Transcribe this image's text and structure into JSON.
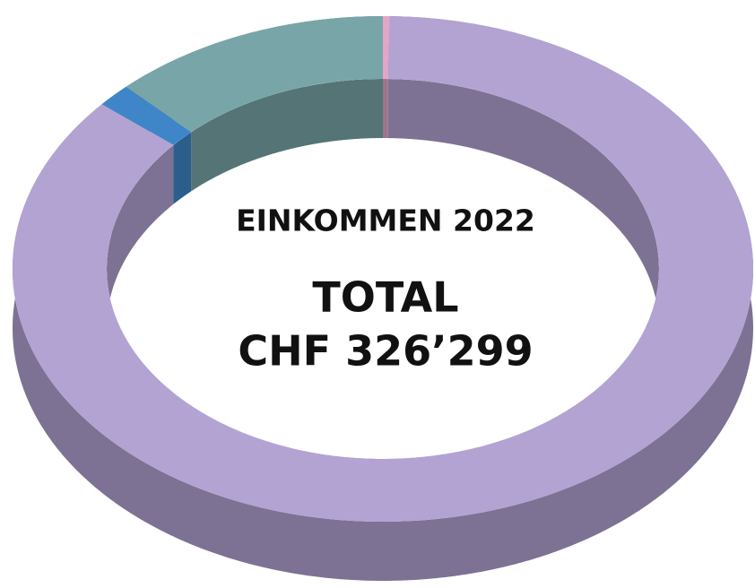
{
  "chart_data": {
    "type": "donut",
    "title": "EINKOMMEN 2022",
    "center_text": [
      "TOTAL",
      "CHF 326’299"
    ],
    "categories": [
      null,
      null,
      null,
      null
    ],
    "values": [
      0.3,
      86,
      1.5,
      12.2
    ],
    "colors": [
      "#e3a6c6",
      "#b3a3d3",
      "#3f86c8",
      "#78a6a8"
    ]
  }
}
